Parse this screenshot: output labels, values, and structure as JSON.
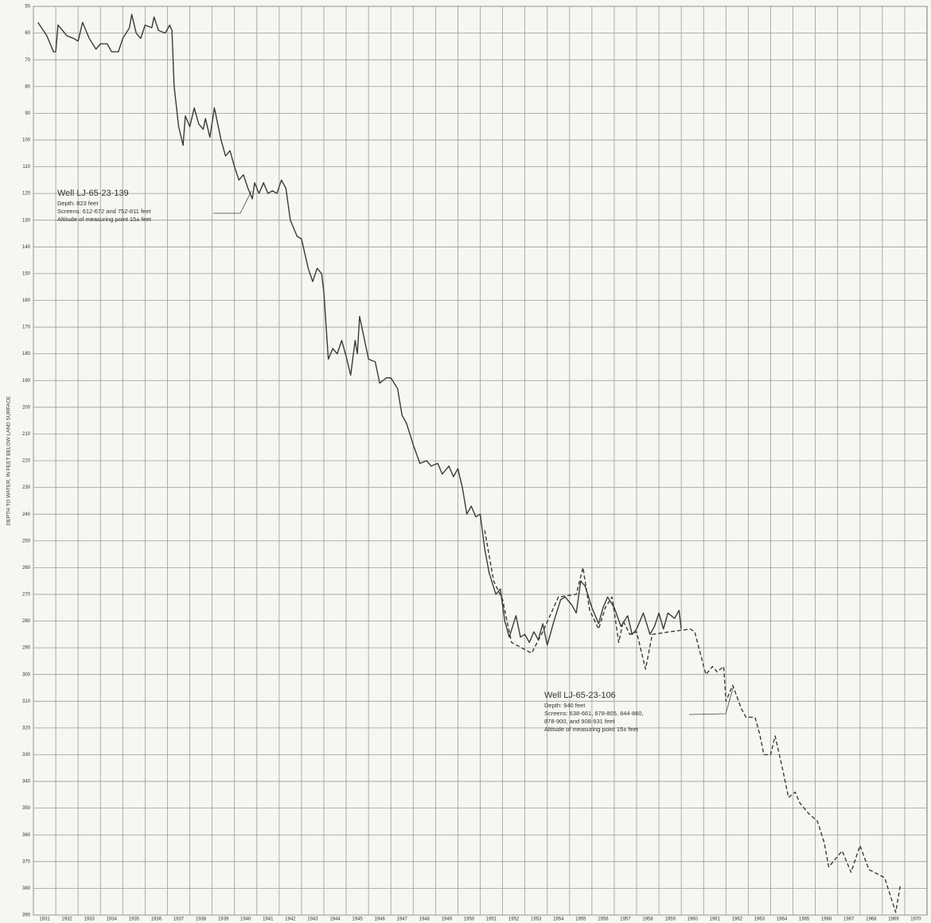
{
  "chart_data": {
    "type": "line",
    "y_axis_label": "DEPTH TO WATER, IN FEET BELOW LAND SURFACE",
    "xlim": [
      1931,
      1971
    ],
    "xticks": [
      1931,
      1932,
      1933,
      1934,
      1935,
      1936,
      1937,
      1938,
      1939,
      1940,
      1941,
      1942,
      1943,
      1944,
      1945,
      1946,
      1947,
      1948,
      1949,
      1950,
      1951,
      1952,
      1953,
      1954,
      1955,
      1956,
      1957,
      1958,
      1959,
      1960,
      1961,
      1962,
      1963,
      1964,
      1965,
      1966,
      1967,
      1968,
      1969,
      1970
    ],
    "ylim": [
      50,
      390
    ],
    "y_inverted": true,
    "yticks": [
      50,
      60,
      70,
      80,
      90,
      100,
      110,
      120,
      130,
      140,
      150,
      160,
      170,
      180,
      190,
      200,
      210,
      220,
      230,
      240,
      250,
      260,
      270,
      280,
      290,
      300,
      310,
      320,
      330,
      340,
      350,
      360,
      370,
      380,
      390
    ],
    "grid": true,
    "series": [
      {
        "name": "Well LJ-65-23-139",
        "color": "#3a3a3a",
        "dash": "solid",
        "x": [
          1931.2,
          1931.6,
          1931.9,
          1932.0,
          1932.1,
          1932.2,
          1932.5,
          1932.8,
          1933.0,
          1933.2,
          1933.5,
          1933.8,
          1934.0,
          1934.3,
          1934.5,
          1934.8,
          1935.0,
          1935.3,
          1935.4,
          1935.6,
          1935.8,
          1936.0,
          1936.3,
          1936.4,
          1936.6,
          1936.9,
          1937.1,
          1937.2,
          1937.3,
          1937.5,
          1937.7,
          1937.8,
          1938.0,
          1938.2,
          1938.4,
          1938.6,
          1938.7,
          1938.9,
          1939.1,
          1939.2,
          1939.4,
          1939.6,
          1939.8,
          1940.0,
          1940.2,
          1940.4,
          1940.6,
          1940.8,
          1940.9,
          1941.1,
          1941.3,
          1941.5,
          1941.7,
          1941.9,
          1942.1,
          1942.3,
          1942.5,
          1942.8,
          1943.0,
          1943.3,
          1943.5,
          1943.7,
          1943.9,
          1944.0,
          1944.2,
          1944.4,
          1944.6,
          1944.8,
          1945.0,
          1945.2,
          1945.4,
          1945.5,
          1945.6,
          1945.8,
          1946.0,
          1946.3,
          1946.5,
          1946.8,
          1947.0,
          1947.3,
          1947.5,
          1947.7,
          1948.0,
          1948.3,
          1948.6,
          1948.8,
          1949.1,
          1949.3,
          1949.6,
          1949.8,
          1950.0,
          1950.2,
          1950.4,
          1950.6,
          1950.8,
          1951.0,
          1951.2,
          1951.4,
          1951.7,
          1951.9,
          1952.1,
          1952.3,
          1952.6,
          1952.8,
          1953.0,
          1953.2,
          1953.4,
          1953.6,
          1953.8,
          1954.0,
          1954.3,
          1954.6,
          1954.8,
          1955.1,
          1955.3,
          1955.5,
          1955.7,
          1956.0,
          1956.3,
          1956.5,
          1956.7,
          1957.0,
          1957.3,
          1957.6,
          1957.8,
          1958.0,
          1958.3,
          1958.6,
          1958.8,
          1959.0,
          1959.2,
          1959.4,
          1959.7,
          1959.9,
          1960.0
        ],
        "values": [
          56,
          61,
          67,
          67,
          57,
          58,
          61,
          62,
          63,
          56,
          62,
          66,
          64,
          64,
          67,
          67,
          62,
          58,
          53,
          60,
          62,
          57,
          58,
          54,
          59,
          60,
          57,
          59,
          80,
          95,
          102,
          91,
          95,
          88,
          94,
          96,
          92,
          99,
          88,
          92,
          100,
          106,
          104,
          110,
          115,
          113,
          118,
          122,
          116,
          120,
          116,
          120,
          119,
          120,
          115,
          118,
          130,
          136,
          137,
          148,
          153,
          148,
          150,
          157,
          182,
          178,
          180,
          175,
          181,
          188,
          175,
          180,
          166,
          174,
          182,
          183,
          191,
          189,
          189,
          193,
          203,
          206,
          214,
          221,
          220,
          222,
          221,
          225,
          222,
          226,
          223,
          230,
          240,
          237,
          241,
          240,
          253,
          262,
          270,
          268,
          280,
          286,
          278,
          286,
          285,
          288,
          284,
          287,
          281,
          289,
          280,
          272,
          271,
          274,
          277,
          265,
          267,
          275,
          281,
          275,
          271,
          275,
          282,
          278,
          285,
          283,
          277,
          285,
          282,
          277,
          283,
          277,
          279,
          276,
          283
        ]
      },
      {
        "name": "Well LJ-65-23-106",
        "color": "#3a3a3a",
        "dash": "dashed",
        "x": [
          1951.2,
          1951.6,
          1952.0,
          1952.4,
          1953.3,
          1953.8,
          1954.5,
          1955.3,
          1955.6,
          1955.9,
          1956.3,
          1956.6,
          1956.9,
          1957.2,
          1957.4,
          1957.7,
          1958.0,
          1958.4,
          1958.7,
          1959.5,
          1960.4,
          1960.6,
          1961.1,
          1961.4,
          1961.6,
          1961.9,
          1962.0,
          1962.3,
          1962.7,
          1962.9,
          1963.3,
          1963.5,
          1963.7,
          1964.0,
          1964.2,
          1964.5,
          1964.8,
          1965.1,
          1965.3,
          1965.7,
          1966.1,
          1966.4,
          1966.6,
          1967.2,
          1967.6,
          1968.0,
          1968.4,
          1969.1,
          1969.6,
          1969.8
        ],
        "values": [
          246,
          265,
          272,
          288,
          292,
          284,
          271,
          270,
          260,
          276,
          283,
          275,
          271,
          288,
          280,
          285,
          284,
          298,
          285,
          284,
          283,
          284,
          300,
          297,
          299,
          297,
          310,
          304,
          313,
          316,
          316,
          322,
          330,
          330,
          323,
          334,
          346,
          344,
          348,
          352,
          355,
          363,
          372,
          366,
          374,
          364,
          373,
          376,
          389,
          379
        ]
      }
    ],
    "annotations": [
      {
        "series": 0,
        "lines": [
          "Depth: 823 feet",
          "Screens: 612-672 and 752-811 feet",
          "Altitude of measuring point 15± feet"
        ]
      },
      {
        "series": 1,
        "lines": [
          "Depth: 940 feet",
          "Screens: 638-661, 678-805, 844-860,",
          "878-900, and 908-931 feet",
          "Altitude of measuring point 15± feet"
        ]
      }
    ]
  }
}
